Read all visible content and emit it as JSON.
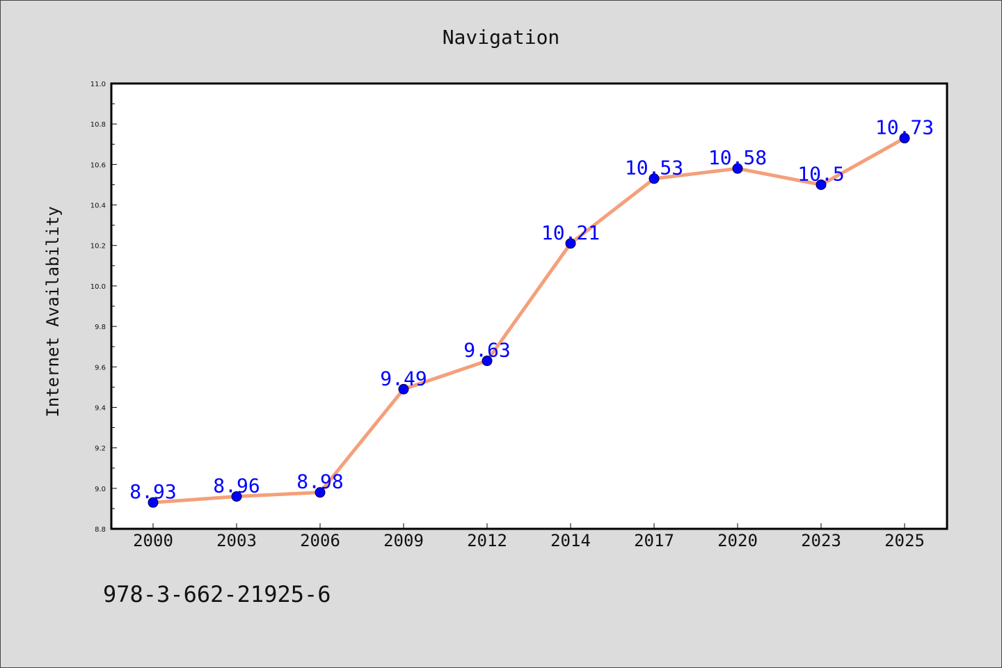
{
  "chart_data": {
    "type": "line",
    "title": "Navigation",
    "xlabel": "",
    "ylabel": "Internet Availability",
    "categories": [
      "2000",
      "2003",
      "2006",
      "2009",
      "2012",
      "2014",
      "2017",
      "2020",
      "2023",
      "2025"
    ],
    "series": [
      {
        "values": [
          8.93,
          8.96,
          8.98,
          9.49,
          9.63,
          10.21,
          10.53,
          10.58,
          10.5,
          10.73
        ],
        "line_color": "#f4a07a",
        "marker_color": "#0000ff"
      }
    ],
    "data_labels": [
      "8.93",
      "8.96",
      "8.98",
      "9.49",
      "9.63",
      "10.21",
      "10.53",
      "10.58",
      "10.5",
      "10.73"
    ],
    "ylim": [
      8.8,
      11.0
    ],
    "yticks": [
      "8.8",
      "9.0",
      "9.2",
      "9.4",
      "9.6",
      "9.8",
      "10.0",
      "10.2",
      "10.4",
      "10.6",
      "10.8",
      "11.0"
    ],
    "grid": false,
    "data_label_color": "#0000ff"
  },
  "footer_text": "978-3-662-21925-6"
}
